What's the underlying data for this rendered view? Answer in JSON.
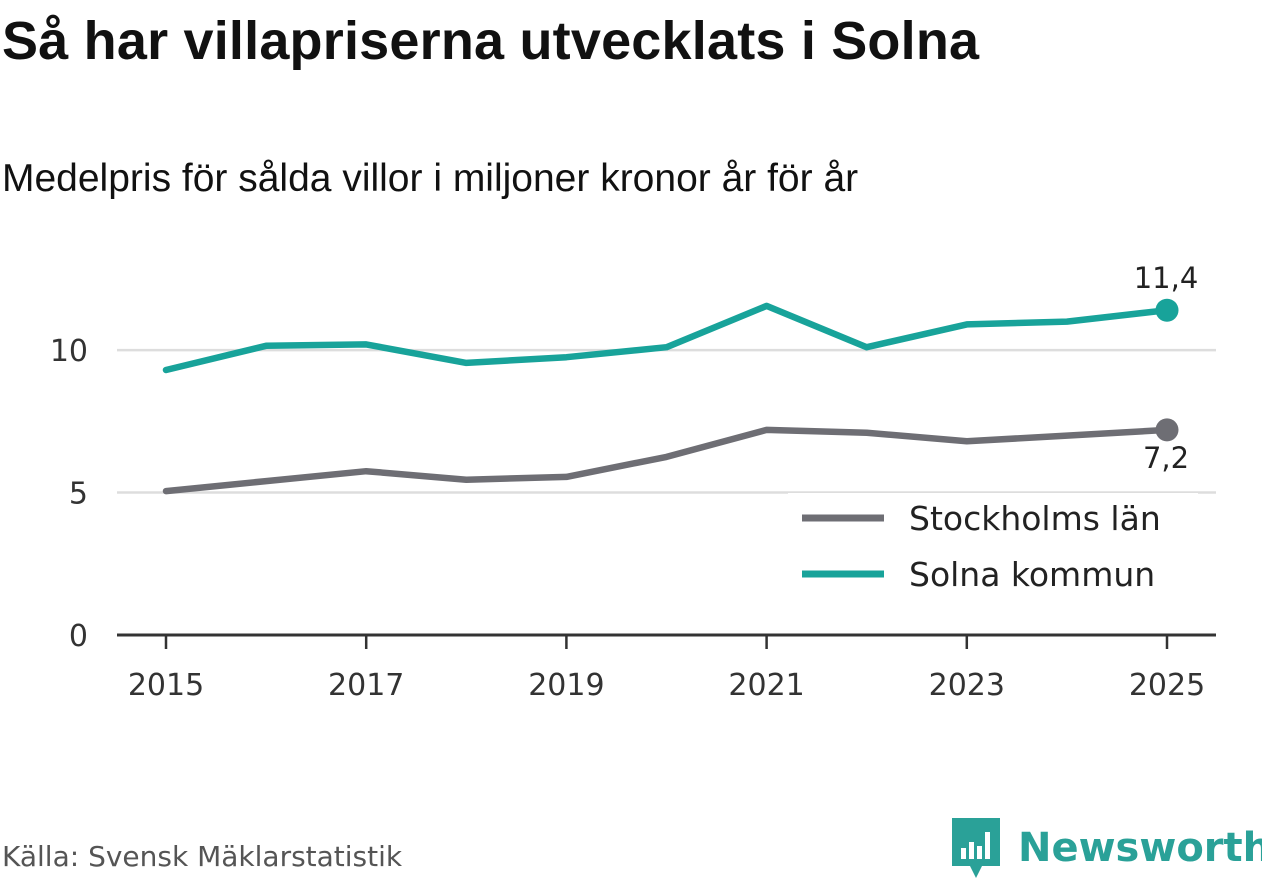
{
  "title": "Så har villapriserna utvecklats i Solna",
  "subtitle": "Medelpris för sålda villor i miljoner kronor år för år",
  "source": "Källa: Svensk Mäklarstatistik",
  "logo_text": "Newsworthy",
  "chart_data": {
    "type": "line",
    "x": [
      2015,
      2016,
      2017,
      2018,
      2019,
      2020,
      2021,
      2022,
      2023,
      2024,
      2025
    ],
    "xticks": [
      "2015",
      "2017",
      "2019",
      "2021",
      "2023",
      "2025"
    ],
    "yticks": [
      "0",
      "5",
      "10"
    ],
    "ylim": [
      0,
      12.6
    ],
    "series": [
      {
        "name": "Stockholms län",
        "color": "#6e6e74",
        "values": [
          5.05,
          5.4,
          5.75,
          5.45,
          5.55,
          6.25,
          7.2,
          7.1,
          6.8,
          7.0,
          7.2
        ],
        "end_label": "7,2",
        "end_label_position": "below"
      },
      {
        "name": "Solna kommun",
        "color": "#18a39a",
        "values": [
          9.3,
          10.15,
          10.2,
          9.55,
          9.75,
          10.1,
          11.55,
          10.1,
          10.9,
          11.0,
          11.4
        ],
        "end_label": "11,4",
        "end_label_position": "above"
      }
    ],
    "legend_position": "bottom-right",
    "xlabel": "",
    "ylabel": ""
  }
}
